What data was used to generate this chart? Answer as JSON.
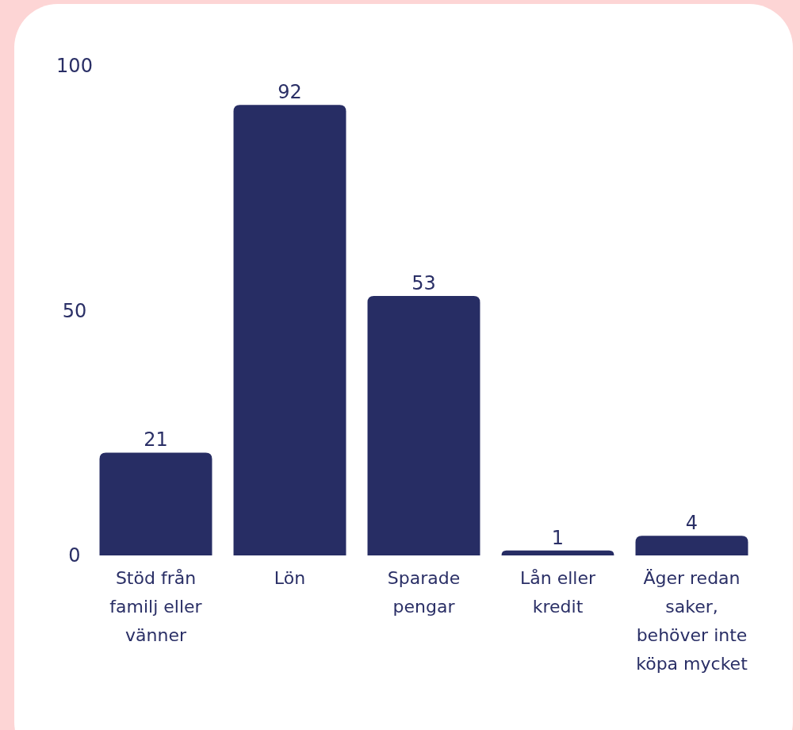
{
  "chart_data": {
    "type": "bar",
    "categories": [
      "Stöd från familj eller vänner",
      "Lön",
      "Sparade pengar",
      "Lån eller kredit",
      "Äger redan saker, behöver inte köpa mycket"
    ],
    "values": [
      21,
      92,
      53,
      1,
      4
    ],
    "color": "#272d64",
    "ylim": [
      0,
      100
    ],
    "yticks": [
      0,
      50,
      100
    ],
    "data_labels": true,
    "grid": false
  }
}
